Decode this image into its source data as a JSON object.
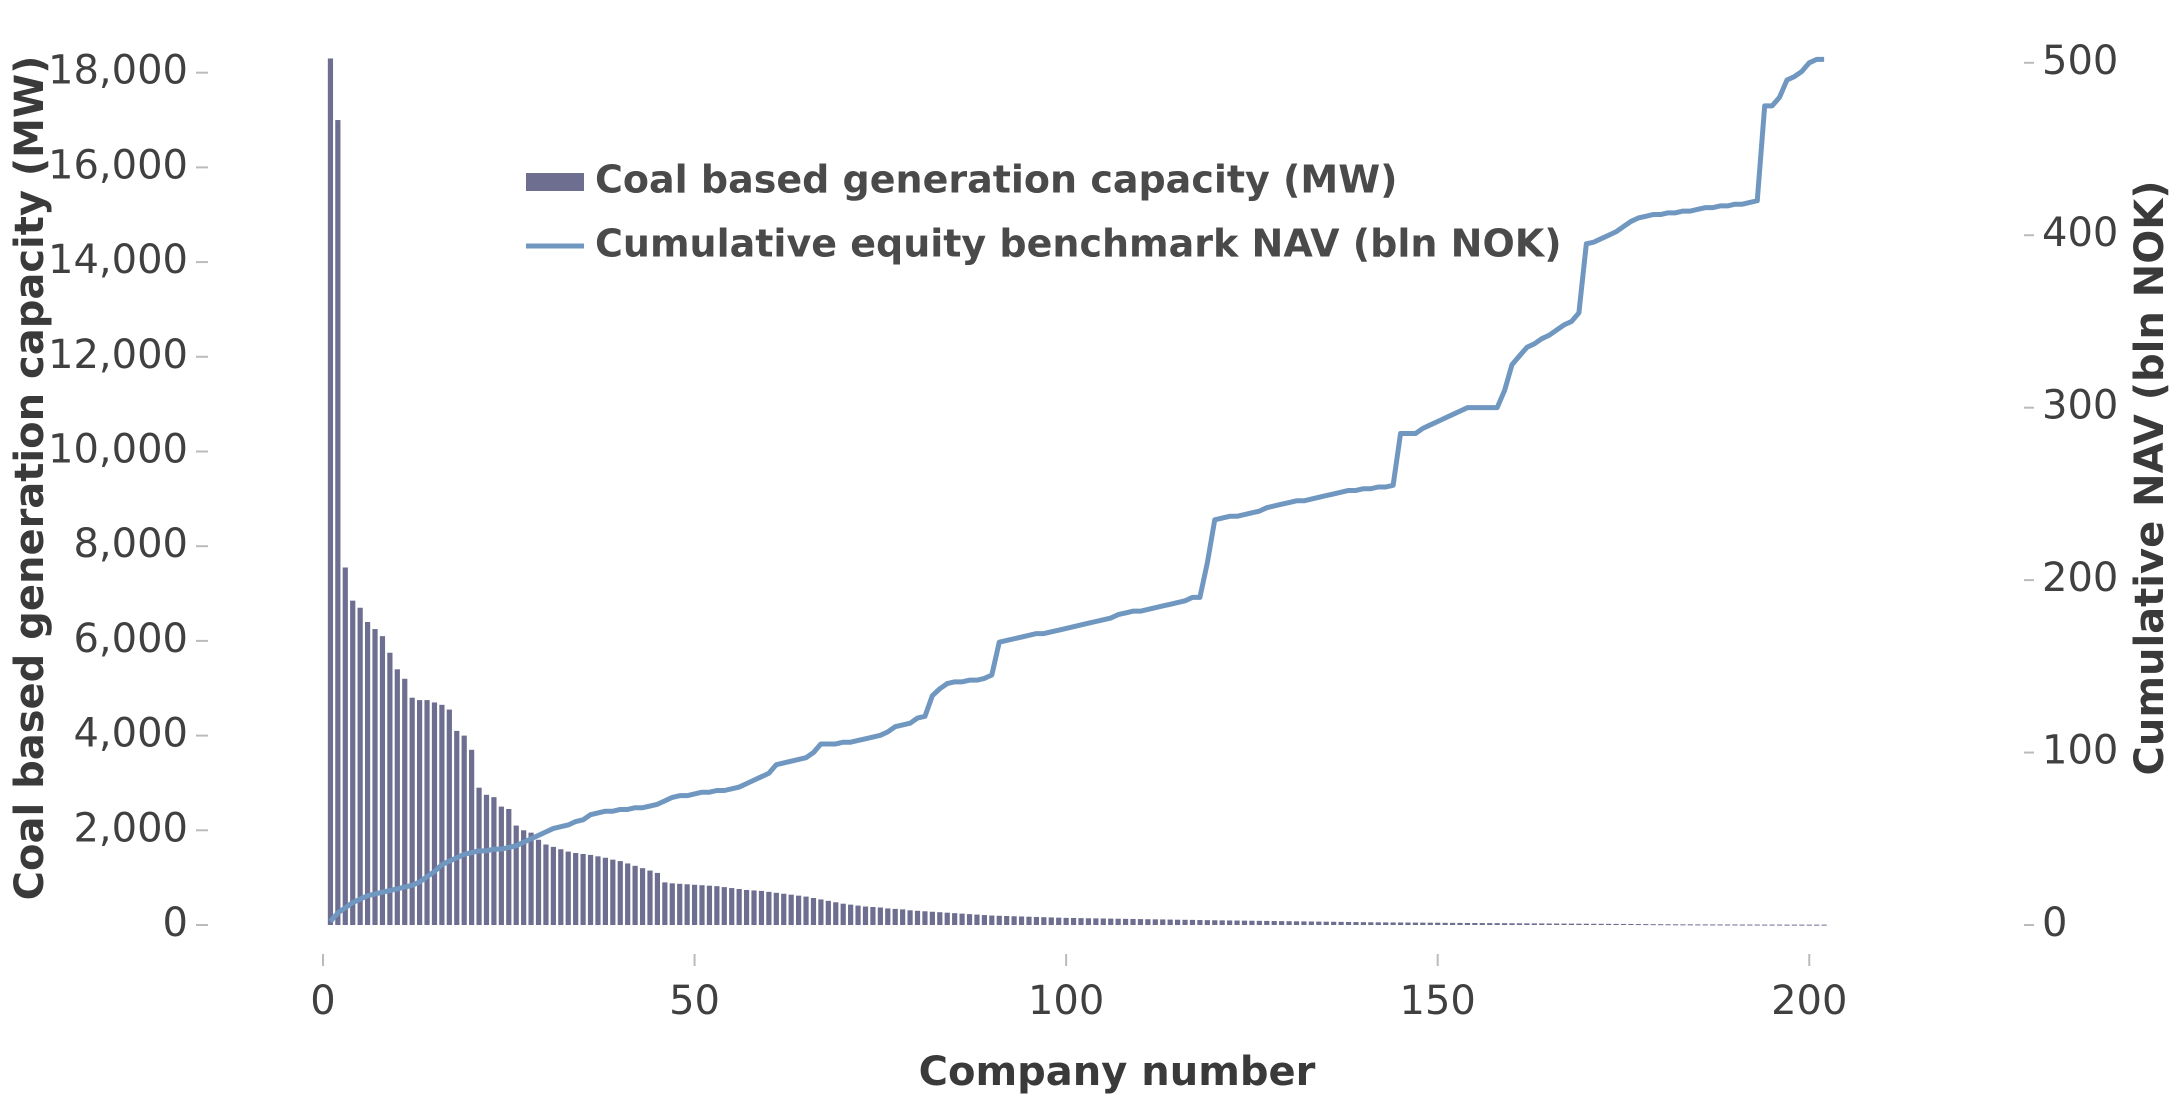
{
  "chart_data": {
    "type": "combo",
    "x_label": "Company number",
    "y_label": "Coal based generation capacity (MW)",
    "y2_label": "Cumulative NAV (bln NOK)",
    "x": [
      1,
      2,
      3,
      4,
      5,
      6,
      7,
      8,
      9,
      10,
      11,
      12,
      13,
      14,
      15,
      16,
      17,
      18,
      19,
      20,
      21,
      22,
      23,
      24,
      25,
      26,
      27,
      28,
      29,
      30,
      31,
      32,
      33,
      34,
      35,
      36,
      37,
      38,
      39,
      40,
      41,
      42,
      43,
      44,
      45,
      46,
      47,
      48,
      49,
      50,
      51,
      52,
      53,
      54,
      55,
      56,
      57,
      58,
      59,
      60,
      61,
      62,
      63,
      64,
      65,
      66,
      67,
      68,
      69,
      70,
      71,
      72,
      73,
      74,
      75,
      76,
      77,
      78,
      79,
      80,
      81,
      82,
      83,
      84,
      85,
      86,
      87,
      88,
      89,
      90,
      91,
      92,
      93,
      94,
      95,
      96,
      97,
      98,
      99,
      100,
      101,
      102,
      103,
      104,
      105,
      106,
      107,
      108,
      109,
      110,
      111,
      112,
      113,
      114,
      115,
      116,
      117,
      118,
      119,
      120,
      121,
      122,
      123,
      124,
      125,
      126,
      127,
      128,
      129,
      130,
      131,
      132,
      133,
      134,
      135,
      136,
      137,
      138,
      139,
      140,
      141,
      142,
      143,
      144,
      145,
      146,
      147,
      148,
      149,
      150,
      151,
      152,
      153,
      154,
      155,
      156,
      157,
      158,
      159,
      160,
      161,
      162,
      163,
      164,
      165,
      166,
      167,
      168,
      169,
      170,
      171,
      172,
      173,
      174,
      175,
      176,
      177,
      178,
      179,
      180,
      181,
      182,
      183,
      184,
      185,
      186,
      187,
      188,
      189,
      190,
      191,
      192,
      193,
      194,
      195,
      196,
      197,
      198,
      199,
      200,
      201,
      202
    ],
    "series": [
      {
        "name": "Coal based generation capacity (MW)",
        "type": "bar",
        "color": "#6e6e91",
        "values": [
          18300,
          17000,
          7550,
          6850,
          6700,
          6400,
          6250,
          6100,
          5750,
          5400,
          5200,
          4800,
          4750,
          4750,
          4700,
          4650,
          4550,
          4100,
          4000,
          3700,
          2900,
          2750,
          2700,
          2500,
          2450,
          2100,
          2000,
          1950,
          1800,
          1700,
          1650,
          1600,
          1550,
          1520,
          1500,
          1480,
          1450,
          1420,
          1380,
          1350,
          1300,
          1250,
          1200,
          1150,
          1100,
          900,
          880,
          870,
          860,
          850,
          840,
          830,
          820,
          800,
          780,
          760,
          740,
          730,
          720,
          700,
          680,
          660,
          640,
          620,
          600,
          570,
          540,
          510,
          480,
          450,
          430,
          410,
          390,
          380,
          370,
          350,
          340,
          330,
          310,
          300,
          290,
          280,
          270,
          260,
          250,
          240,
          230,
          220,
          210,
          200,
          195,
          190,
          185,
          180,
          175,
          170,
          165,
          160,
          155,
          150,
          148,
          145,
          142,
          140,
          138,
          135,
          132,
          130,
          128,
          125,
          122,
          120,
          118,
          115,
          112,
          110,
          108,
          105,
          102,
          100,
          98,
          96,
          94,
          92,
          90,
          88,
          86,
          84,
          82,
          80,
          78,
          76,
          74,
          72,
          70,
          68,
          66,
          64,
          62,
          60,
          58,
          56,
          55,
          54,
          53,
          52,
          51,
          50,
          49,
          48,
          46,
          45,
          44,
          43,
          42,
          41,
          40,
          39,
          38,
          37,
          36,
          35,
          34,
          33,
          32,
          31,
          30,
          29,
          28,
          27,
          26,
          25,
          24,
          23,
          22,
          21,
          20,
          19,
          18,
          17,
          16,
          15,
          14,
          14,
          13,
          13,
          12,
          12,
          11,
          11,
          10,
          10,
          10,
          9,
          9,
          9,
          8,
          8,
          8,
          8,
          8,
          8
        ]
      },
      {
        "name": "Cumulative equity benchmark NAV (bln NOK)",
        "type": "line",
        "axis": "y2",
        "color": "#7097c0",
        "values": [
          2,
          7,
          10,
          13,
          15,
          17,
          18,
          19,
          20,
          21,
          22,
          23,
          25,
          28,
          31,
          35,
          37,
          39,
          41,
          42,
          43,
          43,
          44,
          44,
          45,
          46,
          48,
          50,
          52,
          54,
          56,
          57,
          58,
          60,
          61,
          64,
          65,
          66,
          66,
          67,
          67,
          68,
          68,
          69,
          70,
          72,
          74,
          75,
          75,
          76,
          77,
          77,
          78,
          78,
          79,
          80,
          82,
          84,
          86,
          88,
          93,
          94,
          95,
          96,
          97,
          100,
          105,
          105,
          105,
          106,
          106,
          107,
          108,
          109,
          110,
          112,
          115,
          116,
          117,
          120,
          121,
          133,
          137,
          140,
          141,
          141,
          142,
          142,
          143,
          145,
          164,
          165,
          166,
          167,
          168,
          169,
          169,
          170,
          171,
          172,
          173,
          174,
          175,
          176,
          177,
          178,
          180,
          181,
          182,
          182,
          183,
          184,
          185,
          186,
          187,
          188,
          190,
          190,
          210,
          235,
          236,
          237,
          237,
          238,
          239,
          240,
          242,
          243,
          244,
          245,
          246,
          246,
          247,
          248,
          249,
          250,
          251,
          252,
          252,
          253,
          253,
          254,
          254,
          255,
          285,
          285,
          285,
          288,
          290,
          292,
          294,
          296,
          298,
          300,
          300,
          300,
          300,
          300,
          310,
          325,
          330,
          335,
          337,
          340,
          342,
          345,
          348,
          350,
          355,
          395,
          396,
          398,
          400,
          402,
          405,
          408,
          410,
          411,
          412,
          412,
          413,
          413,
          414,
          414,
          415,
          416,
          416,
          417,
          417,
          418,
          418,
          419,
          420,
          475,
          475,
          480,
          490,
          492,
          495,
          500,
          502,
          502
        ]
      }
    ],
    "xlim": [
      0,
      204
    ],
    "xticks": [
      0,
      50,
      100,
      150,
      200
    ],
    "ylim": [
      0,
      18500
    ],
    "yticks": [
      0,
      {
        "value": 2000,
        "label": "2,000"
      },
      {
        "value": 4000,
        "label": "4,000"
      },
      {
        "value": 6000,
        "label": "6,000"
      },
      {
        "value": 8000,
        "label": "8,000"
      },
      {
        "value": 10000,
        "label": "10,000"
      },
      {
        "value": 12000,
        "label": "12,000"
      },
      {
        "value": 14000,
        "label": "14,000"
      },
      {
        "value": 16000,
        "label": "16,000"
      },
      {
        "value": 18000,
        "label": "18,000"
      }
    ],
    "y2lim": [
      0,
      508
    ],
    "y2ticks": [
      0,
      100,
      200,
      300,
      400,
      500
    ]
  }
}
